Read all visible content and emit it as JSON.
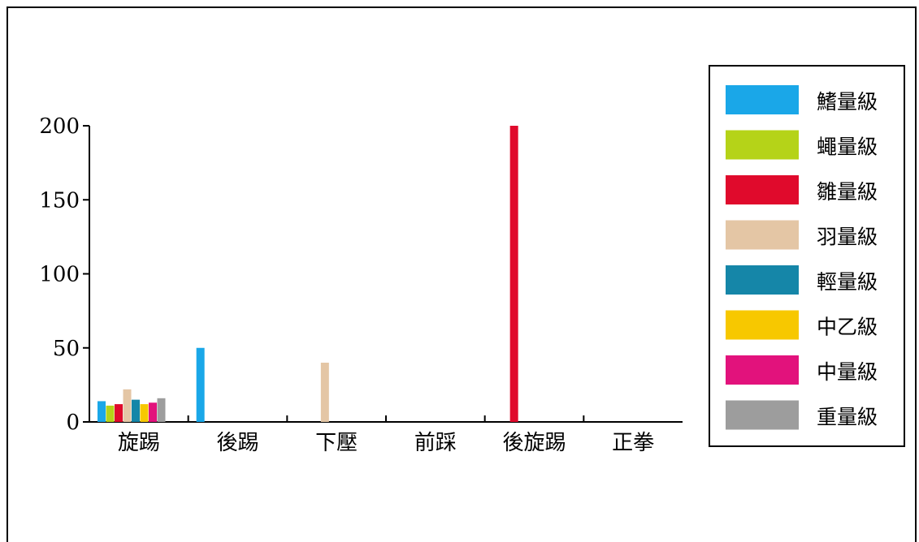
{
  "chart_data": {
    "type": "bar",
    "categories": [
      "旋踢",
      "後踢",
      "下壓",
      "前踩",
      "後旋踢",
      "正拳"
    ],
    "ylim": [
      0,
      200
    ],
    "yticks": [
      0,
      50,
      100,
      150,
      200
    ],
    "grid": false,
    "legend_position": "right",
    "series": [
      {
        "name": "鰭量級",
        "color": "#1aa7e8",
        "values": [
          14,
          50,
          0,
          0,
          0,
          0
        ]
      },
      {
        "name": "蠅量級",
        "color": "#b5d318",
        "values": [
          11,
          0,
          0,
          0,
          0,
          0
        ]
      },
      {
        "name": "雛量級",
        "color": "#e00a2c",
        "values": [
          12,
          0,
          0,
          0,
          200,
          0
        ]
      },
      {
        "name": "羽量級",
        "color": "#e4c6a5",
        "values": [
          22,
          0,
          40,
          0,
          0,
          0
        ]
      },
      {
        "name": "輕量級",
        "color": "#1586a8",
        "values": [
          15,
          0,
          0,
          0,
          0,
          0
        ]
      },
      {
        "name": "中乙級",
        "color": "#f7c800",
        "values": [
          12,
          0,
          0,
          0,
          0,
          0
        ]
      },
      {
        "name": "中量級",
        "color": "#e2127c",
        "values": [
          13,
          0,
          0,
          0,
          0,
          0
        ]
      },
      {
        "name": "重量級",
        "color": "#9d9d9d",
        "values": [
          16,
          0,
          0,
          0,
          0,
          0
        ]
      }
    ]
  }
}
